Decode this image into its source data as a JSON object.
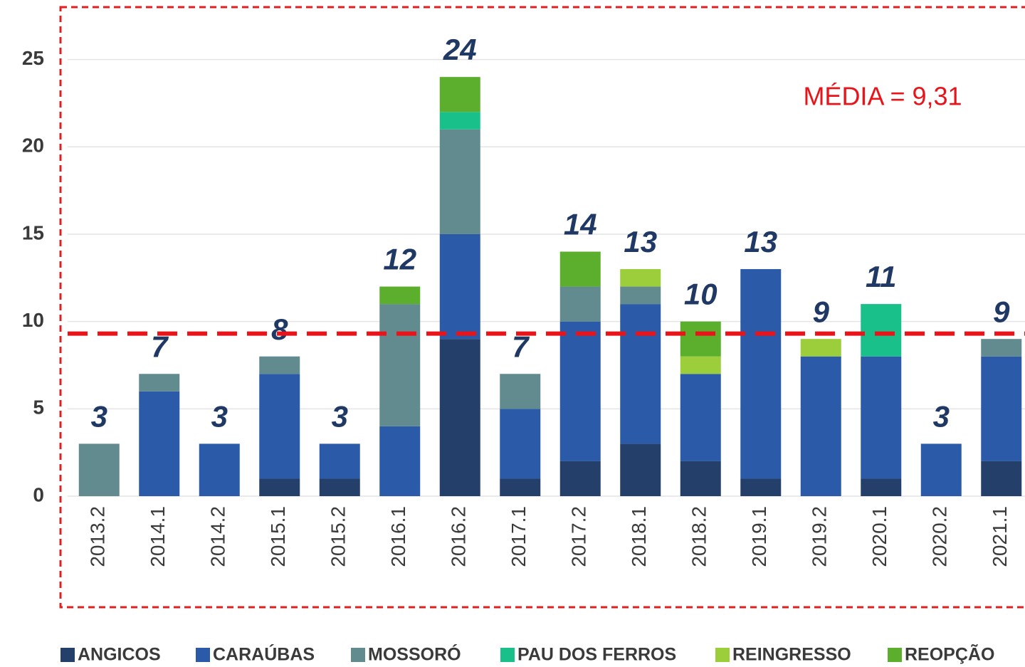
{
  "chart_data": {
    "type": "stacked_bar",
    "categories": [
      "2013.2",
      "2014.1",
      "2014.2",
      "2015.1",
      "2015.2",
      "2016.1",
      "2016.2",
      "2017.1",
      "2017.2",
      "2018.1",
      "2018.2",
      "2019.1",
      "2019.2",
      "2020.1",
      "2020.2",
      "2021.1"
    ],
    "series": [
      {
        "name": "ANGICOS",
        "color": "#243f69",
        "values": [
          0,
          0,
          0,
          1,
          1,
          0,
          9,
          1,
          2,
          3,
          2,
          1,
          0,
          1,
          0,
          2
        ]
      },
      {
        "name": "CARAÚBAS",
        "color": "#2b5ba8",
        "values": [
          0,
          6,
          3,
          6,
          2,
          4,
          6,
          4,
          8,
          8,
          5,
          12,
          8,
          7,
          3,
          6
        ]
      },
      {
        "name": "MOSSORÓ",
        "color": "#628b90",
        "values": [
          3,
          1,
          0,
          1,
          0,
          7,
          6,
          2,
          2,
          1,
          0,
          0,
          0,
          0,
          0,
          1
        ]
      },
      {
        "name": "PAU DOS FERROS",
        "color": "#19c08a",
        "values": [
          0,
          0,
          0,
          0,
          0,
          0,
          1,
          0,
          0,
          0,
          0,
          0,
          0,
          3,
          0,
          0
        ]
      },
      {
        "name": "REINGRESSO",
        "color": "#9ccd3a",
        "values": [
          0,
          0,
          0,
          0,
          0,
          0,
          0,
          0,
          0,
          1,
          1,
          0,
          1,
          0,
          0,
          0
        ]
      },
      {
        "name": "REOPÇÃO",
        "color": "#5caf2c",
        "values": [
          0,
          0,
          0,
          0,
          0,
          1,
          2,
          0,
          2,
          0,
          2,
          0,
          0,
          0,
          0,
          0
        ]
      }
    ],
    "totals": [
      3,
      7,
      3,
      8,
      3,
      12,
      24,
      7,
      14,
      13,
      10,
      13,
      9,
      11,
      3,
      9
    ],
    "mean": 9.31,
    "mean_label": "MÉDIA = 9,31",
    "ylim": [
      0,
      28
    ],
    "yticks": [
      0,
      5,
      10,
      15,
      20,
      25
    ],
    "grid": true,
    "legend": "bottom"
  }
}
